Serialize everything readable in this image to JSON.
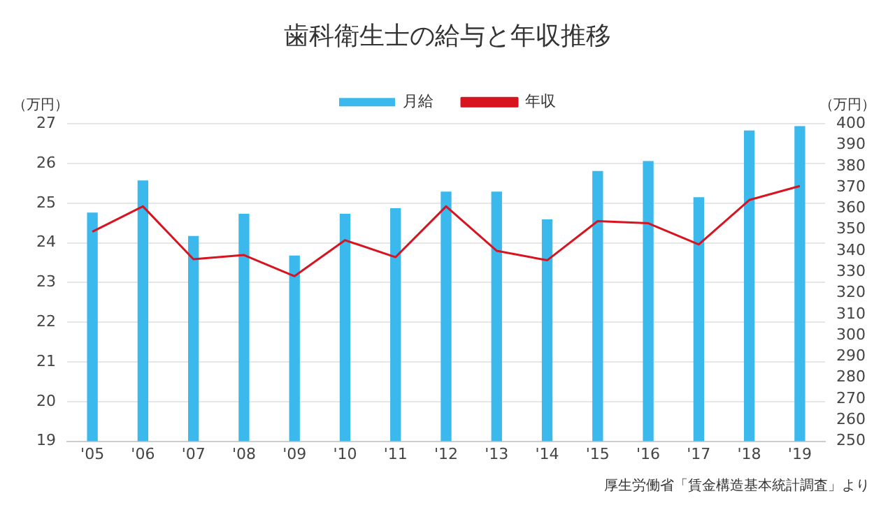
{
  "chart_data": {
    "type": "bar",
    "title": "歯科衛生士の給与と年収推移",
    "ylabel": "（万円）",
    "y2label": "（万円）",
    "categories": [
      "'05",
      "'06",
      "'07",
      "'08",
      "'09",
      "'10",
      "'11",
      "'12",
      "'13",
      "'14",
      "'15",
      "'16",
      "'17",
      "'18",
      "'19"
    ],
    "series": [
      {
        "name": "月給",
        "color": "#3bb8ec",
        "values": [
          24.75,
          25.56,
          24.16,
          24.72,
          23.67,
          24.72,
          24.86,
          25.28,
          25.28,
          24.58,
          25.8,
          26.05,
          25.14,
          26.82,
          26.93
        ]
      },
      {
        "name": "年収",
        "type": "line",
        "axis": "y2",
        "color": "#d7141f",
        "values": [
          349,
          361,
          336,
          338,
          328,
          345,
          337,
          361,
          340,
          335.5,
          354,
          353,
          343,
          364,
          370.6
        ]
      }
    ],
    "ylim": [
      19,
      27
    ],
    "yticks": [
      19,
      20,
      21,
      22,
      23,
      24,
      25,
      26,
      27
    ],
    "y2lim": [
      250,
      400
    ],
    "y2ticks": [
      250,
      260,
      270,
      280,
      290,
      300,
      310,
      320,
      330,
      340,
      350,
      360,
      370,
      380,
      390,
      400
    ],
    "grid": "y",
    "legend": "top",
    "marker": "none",
    "line_style": "solid",
    "annotations": [
      "厚生労働省「賃金構造基本統計調査」より"
    ]
  }
}
